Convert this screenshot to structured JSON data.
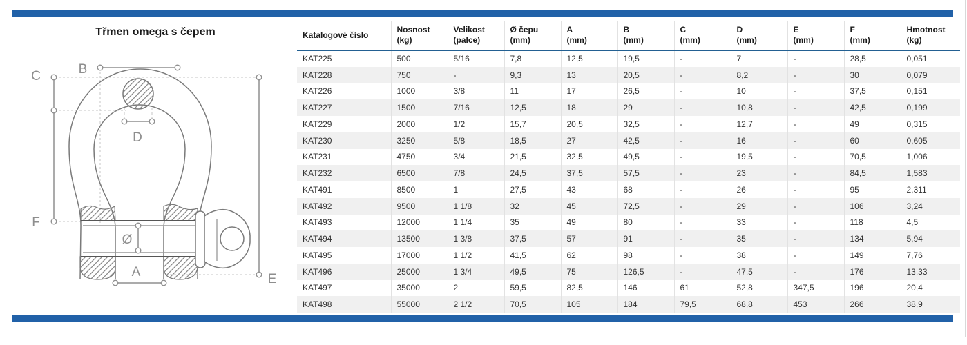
{
  "page": {
    "title": "Třmen omega s čepem"
  },
  "theme": {
    "bar_blue": "#2161a8",
    "header_underline_blue": "#236092",
    "row_alt_bg": "#f0f0f0",
    "grid_line": "#e2e2e2",
    "drawing_gray": "#7a7a7a",
    "dimension_gray": "#8e8e8e"
  },
  "diagram": {
    "labels": {
      "B": "B",
      "C": "C",
      "D": "D",
      "F": "F",
      "diameter": "Ø",
      "A": "A",
      "E": "E"
    }
  },
  "table": {
    "columns": [
      {
        "label": [
          "Katalogové číslo"
        ]
      },
      {
        "label": [
          "Nosnost",
          "(kg)"
        ]
      },
      {
        "label": [
          "Velikost",
          "(palce)"
        ]
      },
      {
        "label": [
          "Ø čepu",
          "(mm)"
        ]
      },
      {
        "label": [
          "A",
          "(mm)"
        ]
      },
      {
        "label": [
          "B",
          "(mm)"
        ]
      },
      {
        "label": [
          "C",
          "(mm)"
        ]
      },
      {
        "label": [
          "D",
          "(mm)"
        ]
      },
      {
        "label": [
          "E",
          "(mm)"
        ]
      },
      {
        "label": [
          "F",
          "(mm)"
        ]
      },
      {
        "label": [
          "Hmotnost",
          "(kg)"
        ]
      }
    ],
    "rows": [
      [
        "KAT225",
        "500",
        "5/16",
        "7,8",
        "12,5",
        "19,5",
        "-",
        "7",
        "-",
        "28,5",
        "0,051"
      ],
      [
        "KAT228",
        "750",
        "-",
        "9,3",
        "13",
        "20,5",
        "-",
        "8,2",
        "-",
        "30",
        "0,079"
      ],
      [
        "KAT226",
        "1000",
        "3/8",
        "11",
        "17",
        "26,5",
        "-",
        "10",
        "-",
        "37,5",
        "0,151"
      ],
      [
        "KAT227",
        "1500",
        "7/16",
        "12,5",
        "18",
        "29",
        "-",
        "10,8",
        "-",
        "42,5",
        "0,199"
      ],
      [
        "KAT229",
        "2000",
        "1/2",
        "15,7",
        "20,5",
        "32,5",
        "-",
        "12,7",
        "-",
        "49",
        "0,315"
      ],
      [
        "KAT230",
        "3250",
        "5/8",
        "18,5",
        "27",
        "42,5",
        "-",
        "16",
        "-",
        "60",
        "0,605"
      ],
      [
        "KAT231",
        "4750",
        "3/4",
        "21,5",
        "32,5",
        "49,5",
        "-",
        "19,5",
        "-",
        "70,5",
        "1,006"
      ],
      [
        "KAT232",
        "6500",
        "7/8",
        "24,5",
        "37,5",
        "57,5",
        "-",
        "23",
        "-",
        "84,5",
        "1,583"
      ],
      [
        "KAT491",
        "8500",
        "1",
        "27,5",
        "43",
        "68",
        "-",
        "26",
        "-",
        "95",
        "2,311"
      ],
      [
        "KAT492",
        "9500",
        "1 1/8",
        "32",
        "45",
        "72,5",
        "-",
        "29",
        "-",
        "106",
        "3,24"
      ],
      [
        "KAT493",
        "12000",
        "1 1/4",
        "35",
        "49",
        "80",
        "-",
        "33",
        "-",
        "118",
        "4,5"
      ],
      [
        "KAT494",
        "13500",
        "1 3/8",
        "37,5",
        "57",
        "91",
        "-",
        "35",
        "-",
        "134",
        "5,94"
      ],
      [
        "KAT495",
        "17000",
        "1 1/2",
        "41,5",
        "62",
        "98",
        "-",
        "38",
        "-",
        "149",
        "7,76"
      ],
      [
        "KAT496",
        "25000",
        "1 3/4",
        "49,5",
        "75",
        "126,5",
        "-",
        "47,5",
        "-",
        "176",
        "13,33"
      ],
      [
        "KAT497",
        "35000",
        "2",
        "59,5",
        "82,5",
        "146",
        "61",
        "52,8",
        "347,5",
        "196",
        "20,4"
      ],
      [
        "KAT498",
        "55000",
        "2 1/2",
        "70,5",
        "105",
        "184",
        "79,5",
        "68,8",
        "453",
        "266",
        "38,9"
      ]
    ]
  }
}
